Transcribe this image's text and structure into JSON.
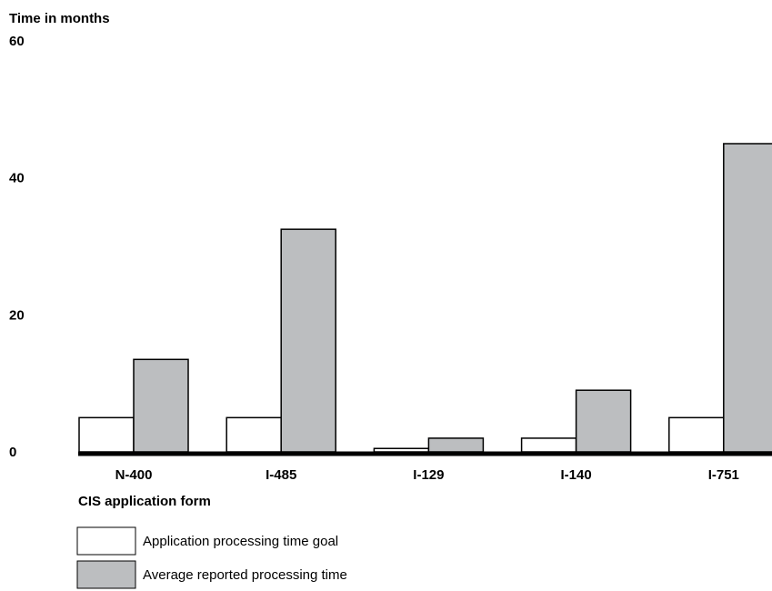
{
  "chart_data": {
    "type": "bar",
    "ylabel": "Time in months",
    "xlabel": "CIS application form",
    "ylim": [
      0,
      60
    ],
    "yticks": [
      "0",
      "20",
      "40",
      "60"
    ],
    "grid": false,
    "legend_position": "bottom-left",
    "categories": [
      "N-400",
      "I-485",
      "I-129",
      "I-140",
      "I-751"
    ],
    "series": [
      {
        "name": "Application processing time goal",
        "color": "#ffffff",
        "values": [
          5,
          5,
          0.5,
          2,
          5
        ]
      },
      {
        "name": "Average reported processing time",
        "color": "#bcbec0",
        "values": [
          13.5,
          32.5,
          2,
          9,
          45
        ]
      }
    ]
  }
}
